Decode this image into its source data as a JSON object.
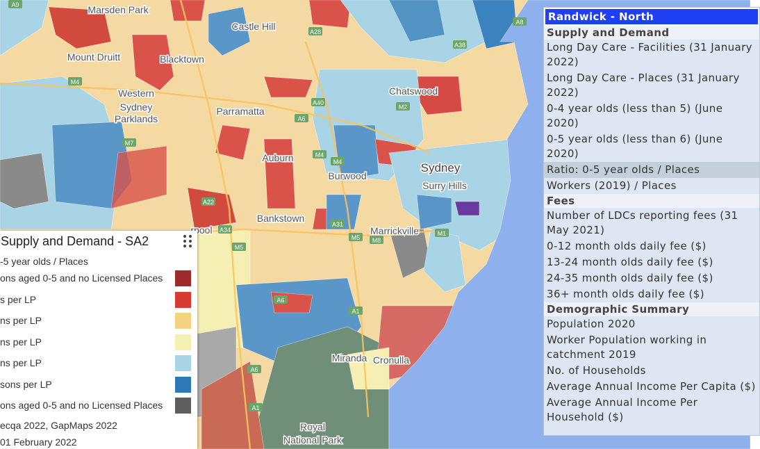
{
  "map": {
    "place_labels": [
      "Marsden Park",
      "Castle Hill",
      "Mount Druitt",
      "Blacktown",
      "Western",
      "Sydney",
      "Parklands",
      "Parramatta",
      "Chatswood",
      "Auburn",
      "Burwood",
      "Sydney",
      "Surry Hills",
      "Marrickville",
      "Bankstown",
      "rpool",
      "Miranda",
      "Cronulla",
      "Royal",
      "National Park"
    ],
    "road_labels": [
      "A9",
      "A28",
      "A38",
      "A8",
      "M4",
      "A40",
      "M2",
      "A6",
      "M7",
      "M4",
      "M4",
      "A22",
      "A34",
      "M5",
      "A31",
      "M5",
      "M8",
      "M1",
      "A6",
      "A1",
      "A6",
      "A1"
    ]
  },
  "legend": {
    "title": "Supply and Demand - SA2",
    "subtitle": "-5 year olds / Places",
    "items": [
      {
        "label": "ons aged 0-5 and no Licensed Places",
        "color": "#9e2a2b"
      },
      {
        "label": "s per LP",
        "color": "#d73a30"
      },
      {
        "label": "ns per LP",
        "color": "#f5d27e"
      },
      {
        "label": "ns per LP",
        "color": "#f6efb4"
      },
      {
        "label": "ns per LP",
        "color": "#a8d4e6"
      },
      {
        "label": "sons per LP",
        "color": "#2f78b6"
      },
      {
        "label": "ons aged 0-5 and no Licensed Places",
        "color": "#5e5e5e"
      }
    ],
    "source": "ecqa 2022, GapMaps 2022",
    "date": "01 February 2022"
  },
  "info_panel": {
    "title": "Randwick - North",
    "sections": [
      {
        "heading": "Supply and Demand",
        "items": [
          {
            "label": "Long Day Care - Facilities (31 January 2022)"
          },
          {
            "label": "Long Day Care - Places (31 January 2022)"
          },
          {
            "label": "0-4 year olds (less than 5) (June 2020)"
          },
          {
            "label": "0-5 year olds (less than 6) (June 2020)"
          },
          {
            "label": "Ratio: 0-5 year olds / Places",
            "selected": true
          },
          {
            "label": "Workers (2019) / Places"
          }
        ]
      },
      {
        "heading": "Fees",
        "items": [
          {
            "label": "Number of LDCs reporting fees (31 May 2021)"
          },
          {
            "label": "0-12 month olds daily fee ($)"
          },
          {
            "label": "13-24 month olds daily fee ($)"
          },
          {
            "label": "24-35 month olds daily fee ($)"
          },
          {
            "label": "36+ month olds daily fee ($)"
          }
        ]
      },
      {
        "heading": "Demographic Summary",
        "items": [
          {
            "label": "Population 2020"
          },
          {
            "label": "Worker Population working in catchment 2019"
          },
          {
            "label": "No. of Households"
          },
          {
            "label": "Average Annual Income Per Capita ($)"
          },
          {
            "label": "Average Annual Income Per Household ($)"
          }
        ]
      }
    ]
  }
}
